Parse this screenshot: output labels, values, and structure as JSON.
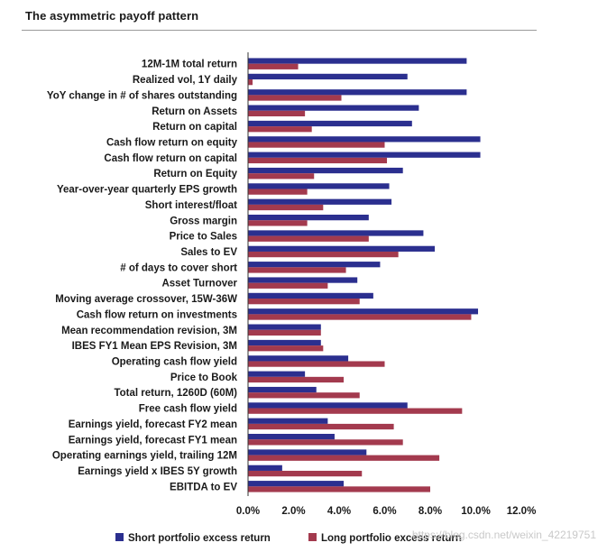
{
  "watermark": "https://blog.csdn.net/weixin_42219751",
  "colors": {
    "short": "#2b2f8f",
    "long": "#a33a4e",
    "axis": "#333333"
  },
  "chart_data": {
    "type": "bar",
    "orientation": "horizontal",
    "title": "The asymmetric payoff pattern",
    "xlim": [
      0,
      12
    ],
    "x_ticks": [
      "0.0%",
      "2.0%",
      "4.0%",
      "6.0%",
      "8.0%",
      "10.0%",
      "12.0%"
    ],
    "grid": false,
    "legend_position": "bottom",
    "categories": [
      "12M-1M total return",
      "Realized vol, 1Y daily",
      "YoY change in # of shares outstanding",
      "Return on Assets",
      "Return on capital",
      "Cash flow return on equity",
      "Cash flow return on capital",
      "Return on Equity",
      "Year-over-year quarterly EPS growth",
      "Short interest/float",
      "Gross margin",
      "Price to Sales",
      "Sales to EV",
      "# of days to cover short",
      "Asset Turnover",
      "Moving average crossover, 15W-36W",
      "Cash flow return on investments",
      "Mean recommendation revision, 3M",
      "IBES FY1 Mean EPS Revision, 3M",
      "Operating cash flow yield",
      "Price to Book",
      "Total return, 1260D (60M)",
      "Free cash flow yield",
      "Earnings yield, forecast FY2 mean",
      "Earnings yield, forecast FY1 mean",
      "Operating earnings yield, trailing 12M",
      "Earnings yield x IBES 5Y growth",
      "EBITDA to EV"
    ],
    "series": [
      {
        "name": "Short portfolio excess return",
        "values": [
          9.6,
          7.0,
          9.6,
          7.5,
          7.2,
          10.2,
          10.2,
          6.8,
          6.2,
          6.3,
          5.3,
          7.7,
          8.2,
          5.8,
          4.8,
          5.5,
          10.1,
          3.2,
          3.2,
          4.4,
          2.5,
          3.0,
          7.0,
          3.5,
          3.8,
          5.2,
          1.5,
          4.2
        ]
      },
      {
        "name": "Long portfolio excess return",
        "values": [
          2.2,
          0.2,
          4.1,
          2.5,
          2.8,
          6.0,
          6.1,
          2.9,
          2.6,
          3.3,
          2.6,
          5.3,
          6.6,
          4.3,
          3.5,
          4.9,
          9.8,
          3.2,
          3.3,
          6.0,
          4.2,
          4.9,
          9.4,
          6.4,
          6.8,
          8.4,
          5.0,
          8.0
        ]
      }
    ]
  }
}
